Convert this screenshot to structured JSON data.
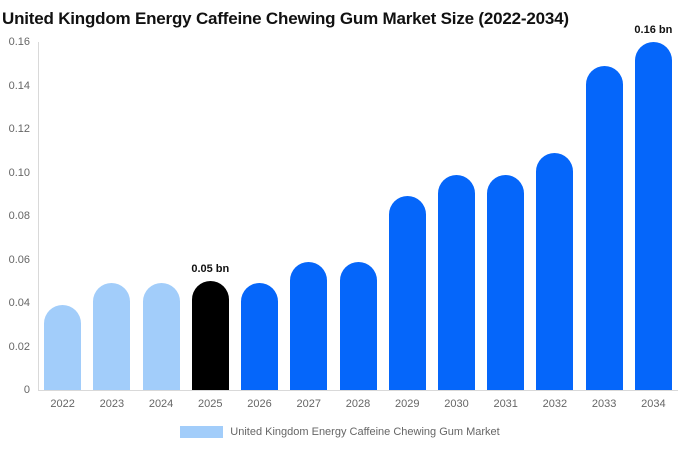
{
  "title": "United Kingdom Energy Caffeine Chewing Gum Market Size (2022-2034)",
  "legend": {
    "label": "United Kingdom Energy Caffeine Chewing Gum Market",
    "swatch_color": "#A2CDFA"
  },
  "colors": {
    "light_blue": "#A2CDFA",
    "bright_blue": "#0566FA",
    "highlight_black": "#000000",
    "axis_line": "#D9D9D9",
    "tick_text": "#666666",
    "title_text": "#111111"
  },
  "chart_data": {
    "type": "bar",
    "title": "United Kingdom Energy Caffeine Chewing Gum Market Size (2022-2034)",
    "unit": "bn",
    "categories": [
      "2022",
      "2023",
      "2024",
      "2025",
      "2026",
      "2027",
      "2028",
      "2029",
      "2030",
      "2031",
      "2032",
      "2033",
      "2034"
    ],
    "values": [
      0.039,
      0.049,
      0.049,
      0.05,
      0.049,
      0.059,
      0.059,
      0.089,
      0.099,
      0.099,
      0.109,
      0.149,
      0.16
    ],
    "bar_colors": [
      "#A2CDFA",
      "#A2CDFA",
      "#A2CDFA",
      "#000000",
      "#0566FA",
      "#0566FA",
      "#0566FA",
      "#0566FA",
      "#0566FA",
      "#0566FA",
      "#0566FA",
      "#0566FA",
      "#0566FA"
    ],
    "point_labels": [
      "",
      "",
      "",
      "0.05 bn",
      "",
      "",
      "",
      "",
      "",
      "",
      "",
      "",
      "0.16 bn"
    ],
    "xlabel": "",
    "ylabel": "",
    "ylim": [
      0,
      0.16
    ],
    "yticks": [
      "0",
      "0.02",
      "0.04",
      "0.06",
      "0.08",
      "0.10",
      "0.12",
      "0.14",
      "0.16"
    ],
    "grid": false,
    "legend_position": "bottom",
    "legend_entries": [
      "United Kingdom Energy Caffeine Chewing Gum Market"
    ]
  }
}
